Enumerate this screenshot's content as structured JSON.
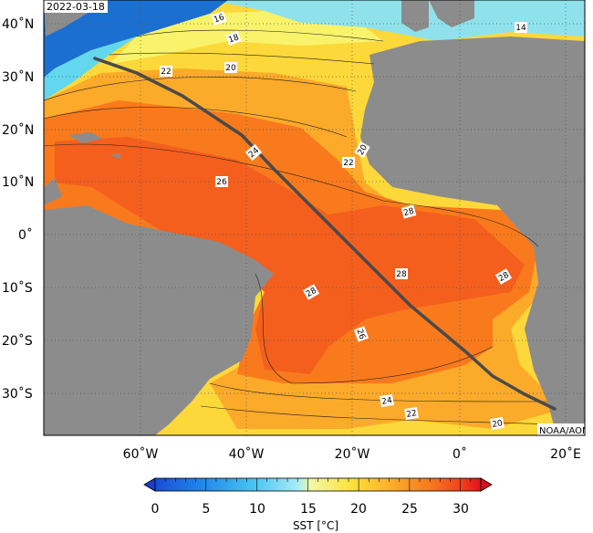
{
  "map": {
    "date": "2022-03-18",
    "credit": "NOAA/AOML",
    "colorbar_title": "SST [°C]",
    "colorbar_ticks": [
      "0",
      "5",
      "10",
      "15",
      "20",
      "25",
      "30"
    ],
    "colorbar_range": [
      0,
      32
    ],
    "lat_labels": [
      "40˚N",
      "30˚N",
      "20˚N",
      "10˚N",
      "0˚",
      "10˚S",
      "20˚S",
      "30˚S"
    ],
    "lon_labels": [
      "60˚W",
      "40˚W",
      "20˚W",
      "0˚",
      "20˚E"
    ],
    "extent": {
      "lon_min": -78,
      "lon_max": 24,
      "lat_min": -38,
      "lat_max": 44
    },
    "contour_labels": [
      "16",
      "18",
      "20",
      "22",
      "14",
      "20",
      "22",
      "24",
      "26",
      "28",
      "28",
      "28",
      "28",
      "26",
      "24",
      "22",
      "20"
    ],
    "colors": {
      "land": "#8c8c8c",
      "ocean_warm": "#f45f1e",
      "ocean_28": "#f97a1c",
      "ocean_24": "#fcaa2a",
      "ocean_20": "#fdd83a",
      "ocean_16": "#f8f36a",
      "ocean_cold": "#62d7ee",
      "ocean_very_cold": "#1b6fd1",
      "track": "#4a4a4a"
    },
    "track_name": "ship-track"
  }
}
